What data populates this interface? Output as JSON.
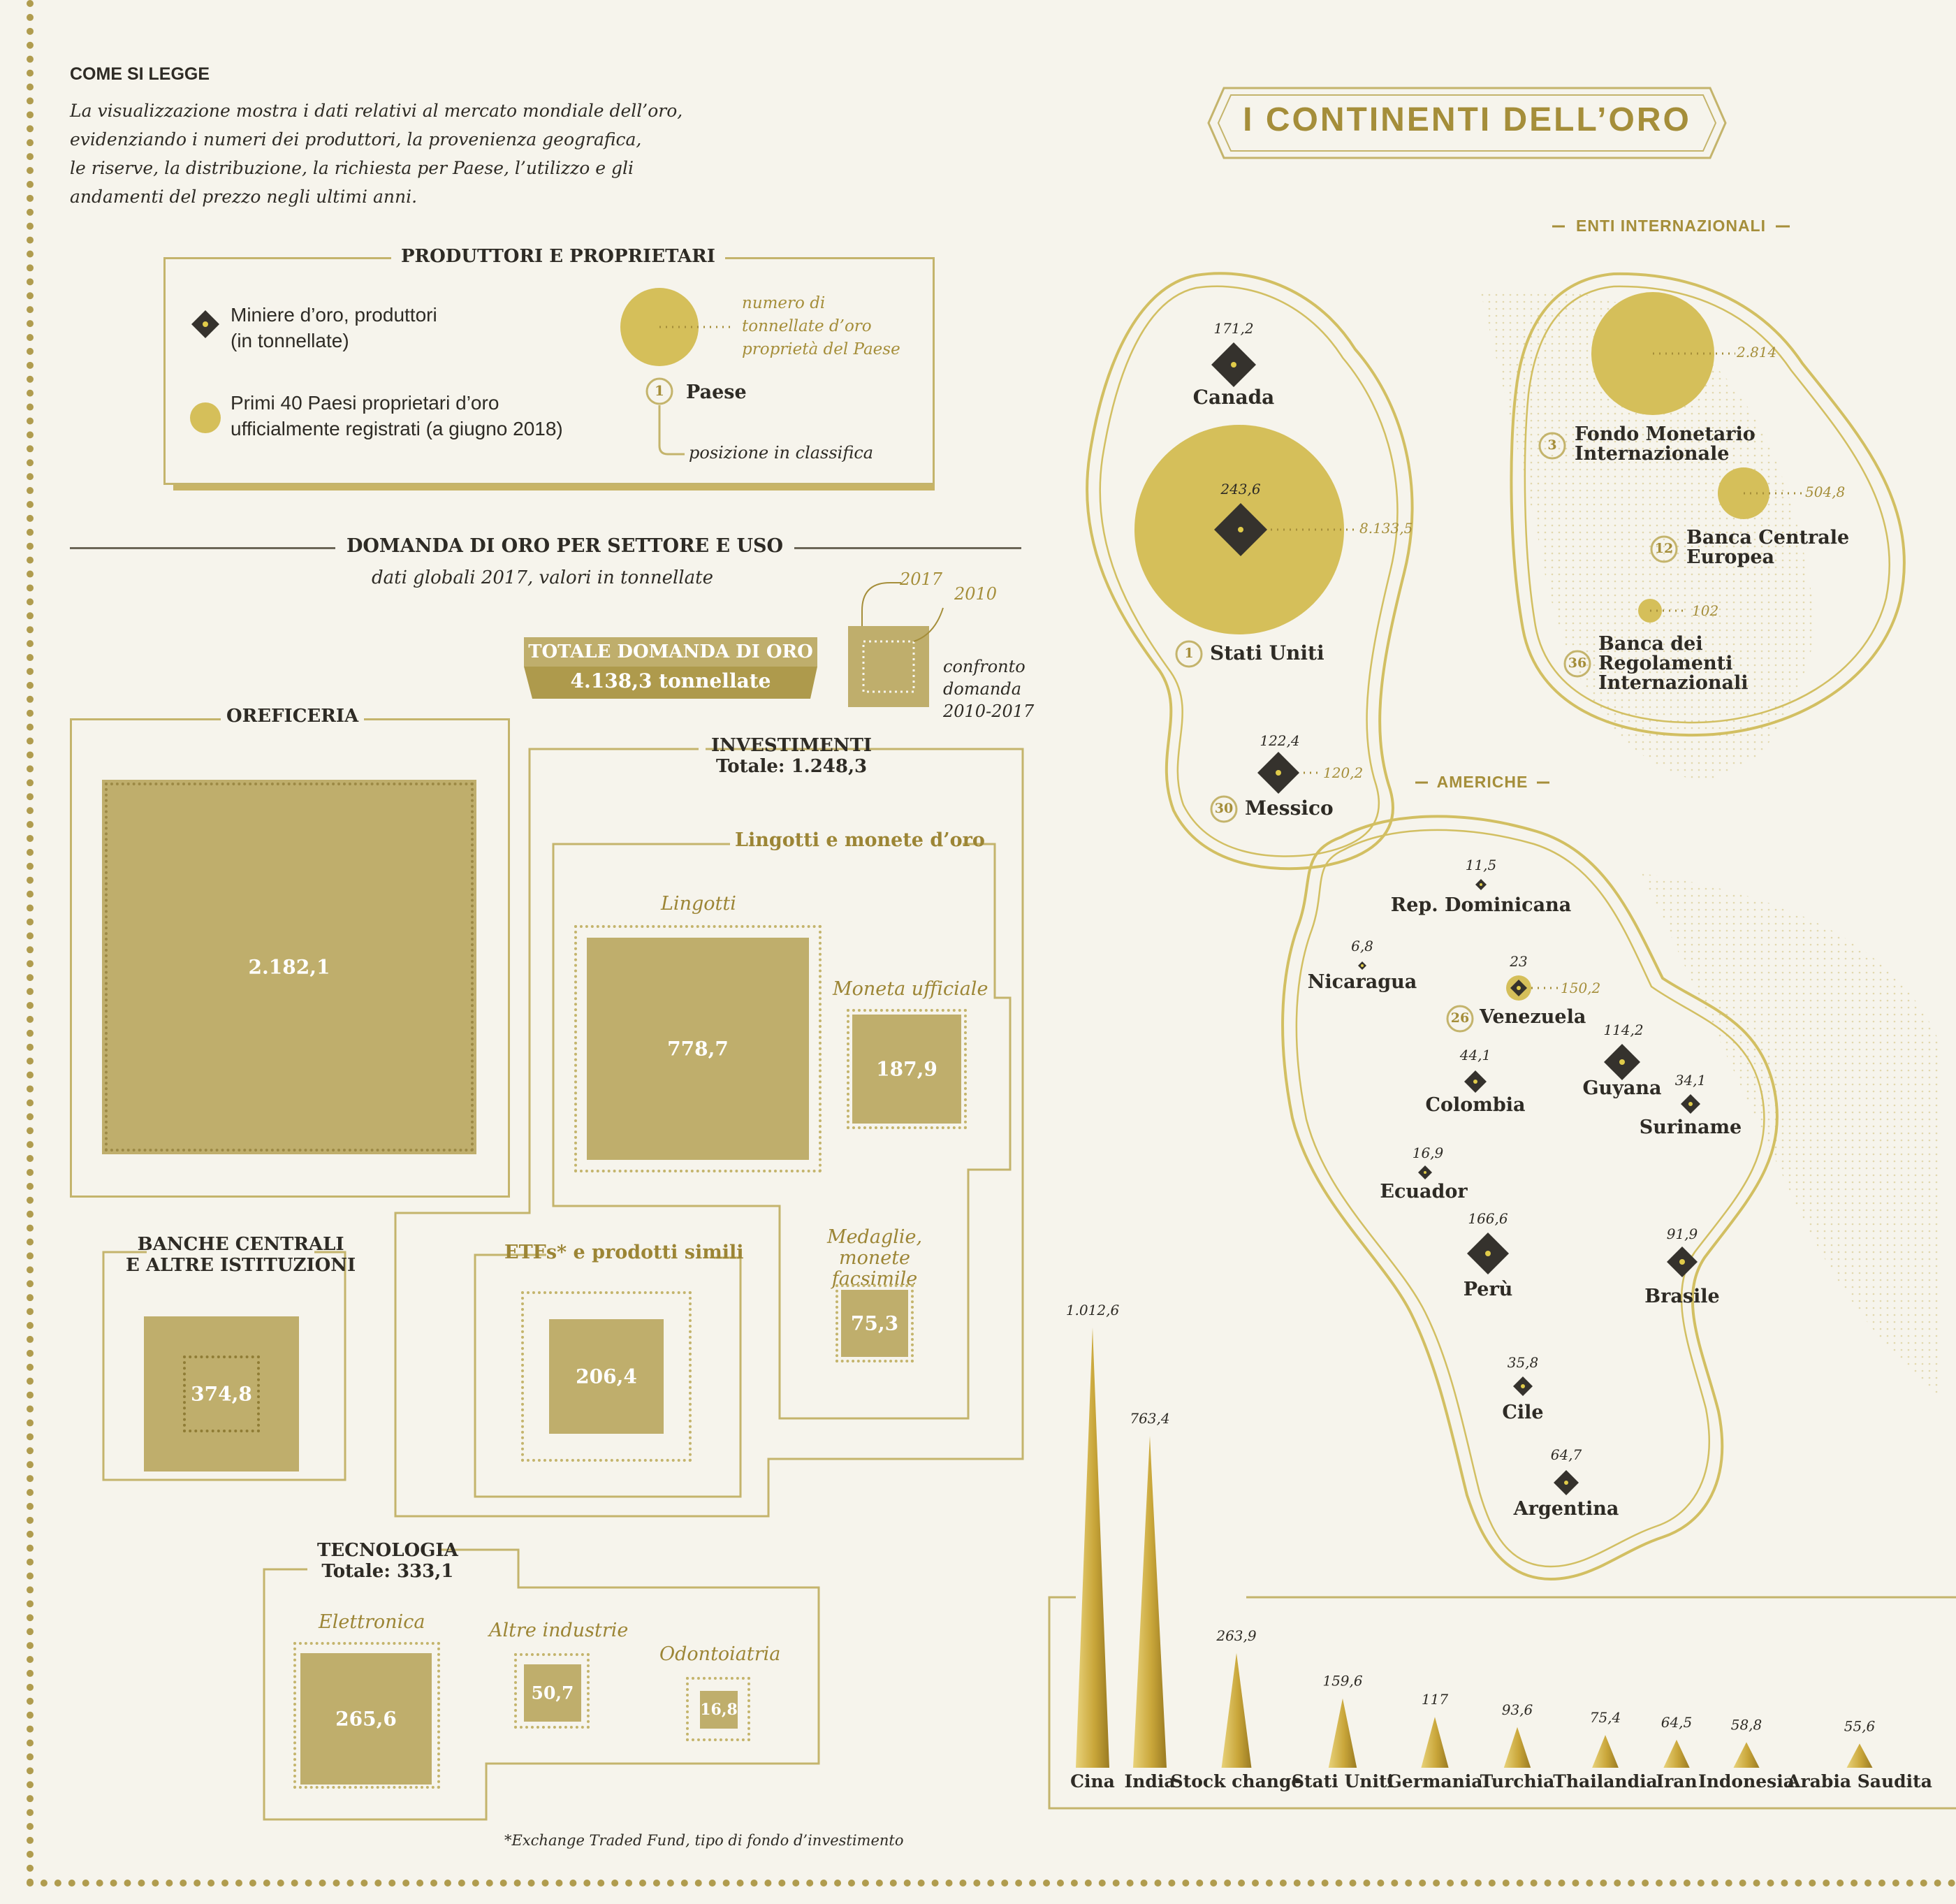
{
  "colors": {
    "gold": "#d5bf5a",
    "gold_dark": "#a58e3a",
    "box_fill": "#bfae6c",
    "dark": "#35322d",
    "bg": "#f6f4ec"
  },
  "legend": {
    "heading": "COME SI LEGGE",
    "description_lines": [
      "La visualizzazione mostra i dati relativi al mercato mondiale dell’oro,",
      "evidenziando i numeri dei produttori, la provenienza geografica,",
      "le riserve, la distribuzione, la richiesta per Paese, l’utilizzo e gli",
      "andamenti del prezzo negli ultimi anni."
    ],
    "box_title": "PRODUTTORI E PROPRIETARI",
    "mines_line1": "Miniere d’oro, produttori",
    "mines_line2": "(in tonnellate)",
    "owners_line1": "Primi 40 Paesi proprietari  d’oro",
    "owners_line2": "ufficialmente registrati (a giugno 2018)",
    "circle_note_lines": [
      "numero di",
      "tonnellate d’oro",
      "proprietà del Paese"
    ],
    "rank_example": "1",
    "country_label": "Paese",
    "rank_note": "posizione in classifica",
    "mine_icon": "diamond-icon",
    "owner_icon": "circle-icon"
  },
  "main_title": "I CONTINENTI DELL’ORO",
  "demand": {
    "title": "DOMANDA DI ORO PER SETTORE E USO",
    "subtitle": "dati globali 2017, valori in tonnellate",
    "total_label": "TOTALE DOMANDA  DI ORO",
    "total_value": "4.138,3 tonnellate",
    "key_2017": "2017",
    "key_2010": "2010",
    "key_note_lines": [
      "confronto",
      "domanda",
      "2010-2017"
    ],
    "oreficeria": {
      "label": "OREFICERIA",
      "value": "2.182,1"
    },
    "investimenti": {
      "label": "INVESTIMENTI",
      "total": "Totale: 1.248,3"
    },
    "lingotti_monete": {
      "label": "Lingotti e monete d’oro"
    },
    "lingotti": {
      "label": "Lingotti",
      "value": "778,7"
    },
    "moneta": {
      "label": "Moneta ufficiale",
      "value": "187,9"
    },
    "medaglie": {
      "label1": "Medaglie,",
      "label2": "monete facsimile",
      "value": "75,3"
    },
    "etf": {
      "label": "ETFs* e prodotti simili",
      "value": "206,4"
    },
    "banche": {
      "label1": "BANCHE CENTRALI",
      "label2": "E ALTRE ISTITUZIONI",
      "value": "374,8"
    },
    "tecnologia": {
      "label": "TECNOLOGIA",
      "total": "Totale: 333,1"
    },
    "elettronica": {
      "label": "Elettronica",
      "value": "265,6"
    },
    "altre": {
      "label": "Altre industrie",
      "value": "50,7"
    },
    "odontoiatria": {
      "label": "Odontoiatria",
      "value": "16,8"
    },
    "footnote": "*Exchange Traded Fund, tipo di fondo d’investimento"
  },
  "map": {
    "enti_label": "ENTI INTERNAZIONALI",
    "americhe_label": "AMERICHE",
    "canada": {
      "name": "Canada",
      "mine": "171,2"
    },
    "usa": {
      "name": "Stati Uniti",
      "mine": "243,6",
      "reserve": "8.133,5",
      "rank": "1"
    },
    "messico": {
      "name": "Messico",
      "mine": "122,4",
      "reserve": "120,2",
      "rank": "30"
    },
    "fmi": {
      "name1": "Fondo Monetario",
      "name2": "Internazionale",
      "reserve": "2.814",
      "rank": "3"
    },
    "bce": {
      "name1": "Banca Centrale",
      "name2": "Europea",
      "reserve": "504,8",
      "rank": "12"
    },
    "bri": {
      "name1": "Banca dei",
      "name2": "Regolamenti",
      "name3": "Internazionali",
      "reserve": "102",
      "rank": "36"
    },
    "repdom": {
      "name": "Rep. Dominicana",
      "mine": "11,5"
    },
    "nicaragua": {
      "name": "Nicaragua",
      "mine": "6,8"
    },
    "venezuela": {
      "name": "Venezuela",
      "mine": "23",
      "reserve": "150,2",
      "rank": "26"
    },
    "colombia": {
      "name": "Colombia",
      "mine": "44,1"
    },
    "guyana": {
      "name": "Guyana",
      "mine": "114,2"
    },
    "suriname": {
      "name": "Suriname",
      "mine": "34,1"
    },
    "ecuador": {
      "name": "Ecuador",
      "mine": "16,9"
    },
    "peru": {
      "name": "Perù",
      "mine": "166,6"
    },
    "brasile": {
      "name": "Brasile",
      "mine": "91,9"
    },
    "cile": {
      "name": "Cile",
      "mine": "35,8"
    },
    "argentina": {
      "name": "Argentina",
      "mine": "64,7"
    }
  },
  "chart_data": {
    "type": "bar",
    "categories": [
      "Cina",
      "India",
      "Stock change",
      "Stati Uniti",
      "Germania",
      "Turchia",
      "Thailandia",
      "Iran",
      "Indonesia",
      "Arabia Saudita"
    ],
    "values": [
      1012.6,
      763.4,
      263.9,
      159.6,
      117,
      93.6,
      75.4,
      64.5,
      58.8,
      55.6
    ],
    "labels": [
      "1.012,6",
      "763,4",
      "263,9",
      "159,6",
      "117",
      "93,6",
      "75,4",
      "64,5",
      "58,8",
      "55,6"
    ],
    "title": "",
    "xlabel": "",
    "ylabel": "",
    "ylim": [
      0,
      1012.6
    ]
  }
}
